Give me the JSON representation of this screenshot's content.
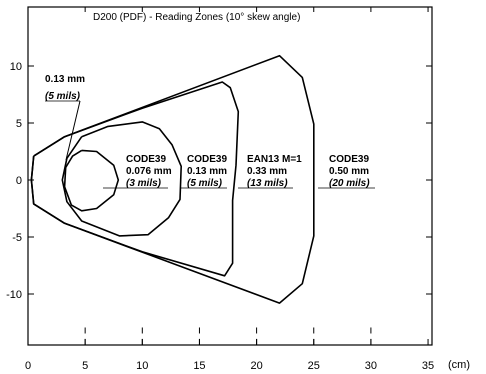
{
  "chart_data": {
    "type": "line",
    "title": "D200 (PDF) -  Reading Zones  (10° skew angle)",
    "xlabel": "(cm)",
    "ylabel": "",
    "xlim": [
      0,
      35
    ],
    "ylim": [
      -15,
      15
    ],
    "xticks": [
      0,
      5,
      10,
      15,
      20,
      25,
      30,
      35
    ],
    "yticks": [
      10,
      5,
      0,
      -5,
      -10
    ],
    "grid": false,
    "series": [
      {
        "name": "CODE39 0.076 mm (3 mils)",
        "code": "CODE39",
        "size": "0.076 mm",
        "mils": "(3 mils)",
        "points": [
          [
            4.7,
            2.6
          ],
          [
            6,
            2.5
          ],
          [
            7.5,
            1.3
          ],
          [
            7.9,
            0
          ],
          [
            7.5,
            -1.3
          ],
          [
            6,
            -2.5
          ],
          [
            4.7,
            -2.7
          ],
          [
            3.8,
            -2.2
          ],
          [
            3.2,
            -0.6
          ],
          [
            3.3,
            1.1
          ],
          [
            3.9,
            2.1
          ],
          [
            4.7,
            2.6
          ]
        ]
      },
      {
        "name": "0.13 mm (5 mils)",
        "code": "",
        "size": "0.13 mm",
        "mils": "(5 mils)",
        "points": [
          [
            4.7,
            3.8
          ],
          [
            7,
            4.7
          ],
          [
            10,
            5.1
          ],
          [
            11.5,
            4.5
          ],
          [
            12.6,
            3.1
          ],
          [
            13.4,
            1.2
          ],
          [
            13.3,
            -1.7
          ],
          [
            12.3,
            -3.3
          ],
          [
            10.5,
            -4.8
          ],
          [
            8,
            -4.9
          ],
          [
            4.7,
            -3.6
          ],
          [
            3.4,
            -1.9
          ],
          [
            3,
            0
          ],
          [
            3.4,
            1.9
          ],
          [
            4.7,
            3.8
          ]
        ]
      },
      {
        "name": "EAN13 M=1 0.33 mm (13 mils)",
        "code": "EAN13 M=1",
        "size": "0.33 mm",
        "mils": "(13 mils)",
        "points": [
          [
            0.5,
            2.1
          ],
          [
            3.2,
            3.8
          ],
          [
            10,
            6.3
          ],
          [
            17,
            8.6
          ],
          [
            17.7,
            8.1
          ],
          [
            18.4,
            6
          ],
          [
            18.2,
            1.3
          ],
          [
            17.9,
            -1.8
          ],
          [
            17.9,
            -7.3
          ],
          [
            17.2,
            -8.4
          ],
          [
            10,
            -6.3
          ],
          [
            3.2,
            -3.8
          ],
          [
            0.5,
            -2.1
          ],
          [
            0.3,
            0
          ],
          [
            0.5,
            2.1
          ]
        ]
      },
      {
        "name": "CODE39 0.50 mm (20 mils)",
        "code": "CODE39",
        "size": "0.50 mm",
        "mils": "(20 mils)",
        "points": [
          [
            0.5,
            2.1
          ],
          [
            3.2,
            3.8
          ],
          [
            22,
            10.9
          ],
          [
            24,
            9
          ],
          [
            25,
            4.9
          ],
          [
            25,
            -4.9
          ],
          [
            24,
            -9.1
          ],
          [
            22,
            -10.8
          ],
          [
            3.2,
            -3.8
          ],
          [
            0.5,
            -2.1
          ],
          [
            0.3,
            0
          ],
          [
            0.5,
            2.1
          ]
        ]
      }
    ]
  },
  "annotations": {
    "a1": {
      "size": "0.13 mm",
      "mils": "(5 mils)"
    },
    "a2": {
      "code": "CODE39",
      "size": "0.076 mm",
      "mils": "(3 mils)"
    },
    "a3": {
      "code": "CODE39",
      "size": "0.13 mm",
      "mils": "(5 mils)"
    },
    "a4": {
      "code": "EAN13 M=1",
      "size": "0.33 mm",
      "mils": "(13 mils)"
    },
    "a5": {
      "code": "CODE39",
      "size": "0.50 mm",
      "mils": "(20 mils)"
    }
  }
}
